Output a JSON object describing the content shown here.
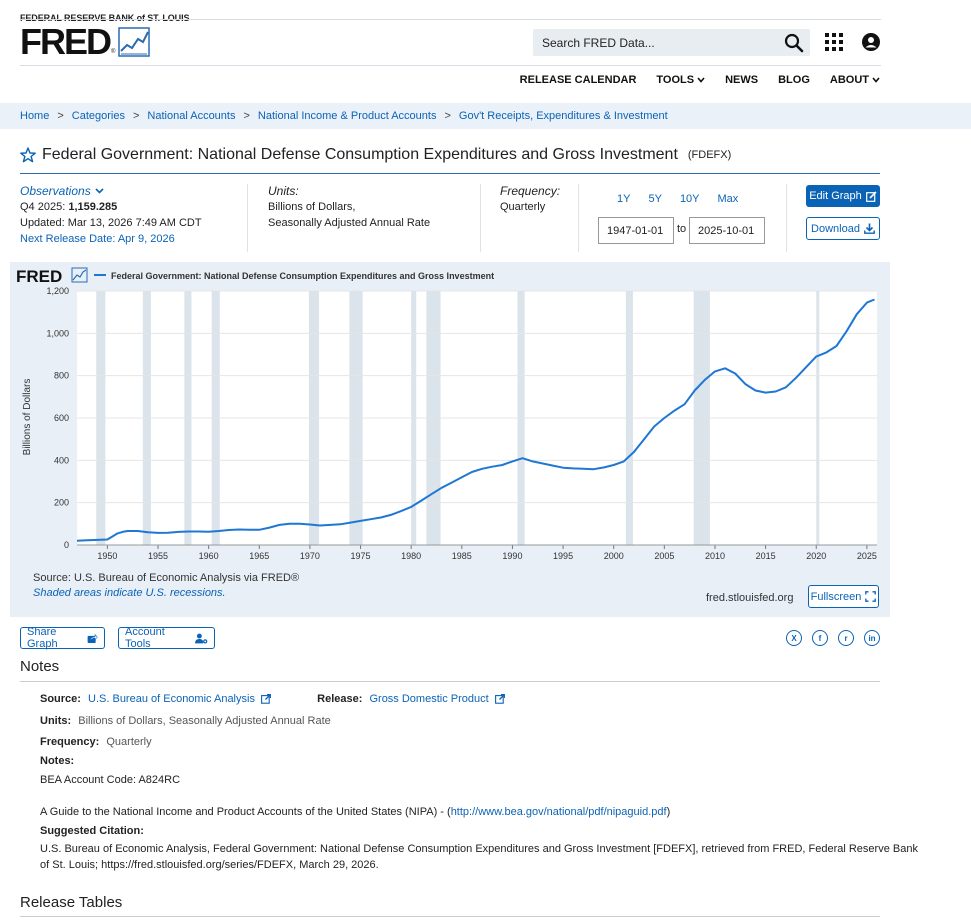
{
  "header": {
    "org": "FEDERAL RESERVE BANK of ST. LOUIS",
    "logo": "FRED",
    "logo_reg": "®",
    "search_placeholder": "Search FRED Data...",
    "nav": [
      "RELEASE CALENDAR",
      "TOOLS",
      "NEWS",
      "BLOG",
      "ABOUT"
    ]
  },
  "breadcrumb": [
    "Home",
    "Categories",
    "National Accounts",
    "National Income & Product Accounts",
    "Gov't Receipts, Expenditures & Investment"
  ],
  "breadcrumb_sep": ">",
  "series": {
    "title": "Federal Government: National Defense Consumption Expenditures and Gross Investment",
    "id": "(FDEFX)"
  },
  "observations": {
    "label": "Observations",
    "period": "Q4 2025:",
    "value": "1,159.285",
    "updated": "Updated: Mar 13, 2026 7:49 AM CDT",
    "next_release": "Next Release Date: Apr 9, 2026"
  },
  "units": {
    "label": "Units:",
    "line1": "Billions of Dollars,",
    "line2": "Seasonally Adjusted Annual Rate"
  },
  "frequency": {
    "label": "Frequency:",
    "value": "Quarterly"
  },
  "ranges": [
    "1Y",
    "5Y",
    "10Y",
    "Max"
  ],
  "date_from": "1947-01-01",
  "date_to_label": "to",
  "date_to": "2025-10-01",
  "buttons": {
    "edit": "Edit Graph",
    "download": "Download",
    "fullscreen": "Fullscreen",
    "share": "Share Graph",
    "account": "Account Tools"
  },
  "chart_data": {
    "type": "line",
    "logo": "FRED",
    "legend": "Federal Government: National Defense Consumption Expenditures and Gross Investment",
    "ylabel": "Billions of Dollars",
    "ylim": [
      0,
      1200
    ],
    "xlim": [
      1947,
      2026
    ],
    "yticks": [
      "0",
      "200",
      "400",
      "600",
      "800",
      "1,000",
      "1,200"
    ],
    "xticks": [
      "1950",
      "1955",
      "1960",
      "1965",
      "1970",
      "1975",
      "1980",
      "1985",
      "1990",
      "1995",
      "2000",
      "2005",
      "2010",
      "2015",
      "2020",
      "2025"
    ],
    "recessions": [
      [
        1948.9,
        1949.8
      ],
      [
        1953.5,
        1954.3
      ],
      [
        1957.6,
        1958.3
      ],
      [
        1960.3,
        1961.1
      ],
      [
        1969.9,
        1970.9
      ],
      [
        1973.9,
        1975.2
      ],
      [
        1980.0,
        1980.5
      ],
      [
        1981.5,
        1982.9
      ],
      [
        1990.5,
        1991.2
      ],
      [
        2001.2,
        2001.9
      ],
      [
        2007.9,
        2009.5
      ],
      [
        2020.0,
        2020.3
      ]
    ],
    "series": [
      {
        "name": "Federal Government: National Defense Consumption Expenditures and Gross Investment",
        "x": [
          1947,
          1948,
          1949,
          1950,
          1950.5,
          1951,
          1951.5,
          1952,
          1953,
          1954,
          1955,
          1956,
          1957,
          1958,
          1959,
          1960,
          1961,
          1962,
          1963,
          1964,
          1965,
          1966,
          1967,
          1968,
          1969,
          1970,
          1971,
          1972,
          1973,
          1974,
          1975,
          1976,
          1977,
          1978,
          1979,
          1980,
          1981,
          1982,
          1983,
          1984,
          1985,
          1986,
          1987,
          1988,
          1989,
          1990,
          1991,
          1992,
          1993,
          1994,
          1995,
          1996,
          1997,
          1998,
          1999,
          2000,
          2001,
          2002,
          2003,
          2004,
          2005,
          2006,
          2007,
          2008,
          2009,
          2010,
          2011,
          2012,
          2013,
          2014,
          2015,
          2016,
          2017,
          2018,
          2019,
          2020,
          2021,
          2022,
          2023,
          2024,
          2025,
          2025.75
        ],
        "y": [
          20,
          22,
          24,
          26,
          40,
          55,
          62,
          66,
          66,
          60,
          57,
          58,
          62,
          64,
          64,
          63,
          66,
          71,
          73,
          72,
          72,
          82,
          95,
          100,
          100,
          97,
          92,
          95,
          98,
          106,
          114,
          122,
          130,
          142,
          160,
          180,
          210,
          240,
          270,
          295,
          320,
          345,
          360,
          370,
          378,
          395,
          410,
          395,
          385,
          375,
          365,
          362,
          360,
          358,
          366,
          378,
          395,
          440,
          500,
          560,
          600,
          635,
          665,
          730,
          780,
          820,
          835,
          810,
          760,
          730,
          720,
          725,
          745,
          790,
          840,
          890,
          910,
          940,
          1010,
          1090,
          1145,
          1160
        ]
      }
    ]
  },
  "source": {
    "line": "Source: U.S. Bureau of Economic Analysis via FRED®",
    "shaded": "Shaded areas indicate U.S. recessions.",
    "url": "fred.stlouisfed.org"
  },
  "social": [
    "X",
    "f",
    "r",
    "in"
  ],
  "notes": {
    "heading": "Notes",
    "source_label": "Source:",
    "source_value": "U.S. Bureau of Economic Analysis",
    "release_label": "Release:",
    "release_value": "Gross Domestic Product",
    "units_label": "Units:",
    "units_value": "Billions of Dollars, Seasonally Adjusted Annual Rate",
    "freq_label": "Frequency:",
    "freq_value": "Quarterly",
    "notes_label": "Notes:",
    "bea_code": "BEA Account Code: A824RC",
    "guide_text": "A Guide to the National Income and Product Accounts of the United States (NIPA) - (",
    "guide_link": "http://www.bea.gov/national/pdf/nipaguid.pdf",
    "guide_close": ")",
    "citation_label": "Suggested Citation:",
    "citation_1": "U.S. Bureau of Economic Analysis, Federal Government: National Defense Consumption Expenditures and Gross Investment [FDEFX], retrieved from FRED, Federal Reserve Bank",
    "citation_2": "of St. Louis; https://fred.stlouisfed.org/series/FDEFX, March 29, 2026."
  },
  "release_tables": {
    "heading": "Release Tables"
  }
}
